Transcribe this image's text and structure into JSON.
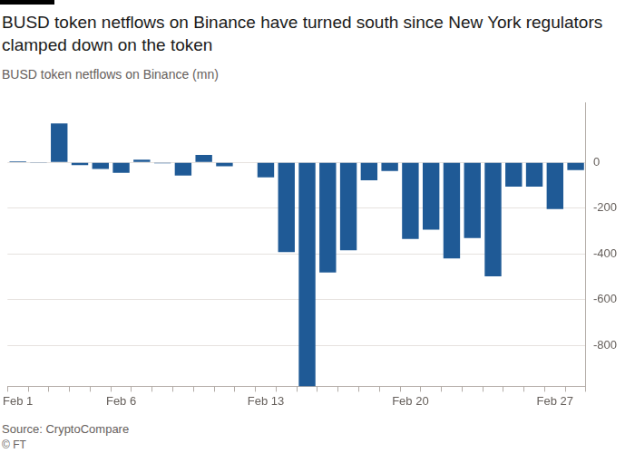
{
  "chart_data": {
    "type": "bar",
    "title": "BUSD token netflows on Binance have turned south since New York regulators clamped down on the token",
    "subtitle": "BUSD token netflows on Binance (mn)",
    "source": "Source: CryptoCompare",
    "credit": "© FT",
    "categories": [
      "Feb 1",
      null,
      null,
      null,
      null,
      "Feb 6",
      null,
      null,
      null,
      null,
      null,
      null,
      "Feb 13",
      null,
      null,
      null,
      null,
      null,
      null,
      "Feb 20",
      null,
      null,
      null,
      null,
      null,
      null,
      "Feb 27",
      null
    ],
    "values": [
      5,
      -3,
      171,
      -12,
      -28,
      -45,
      12,
      -4,
      -57,
      33,
      -16,
      null,
      -65,
      -392,
      -980,
      -482,
      -384,
      -78,
      -37,
      -335,
      -294,
      -420,
      -331,
      -498,
      -106,
      -106,
      -204,
      -33
    ],
    "color": "#1f5a96",
    "ylim": [
      -980,
      260
    ],
    "yticks": [
      -800,
      -600,
      -400,
      -200,
      0
    ],
    "grid": true
  }
}
